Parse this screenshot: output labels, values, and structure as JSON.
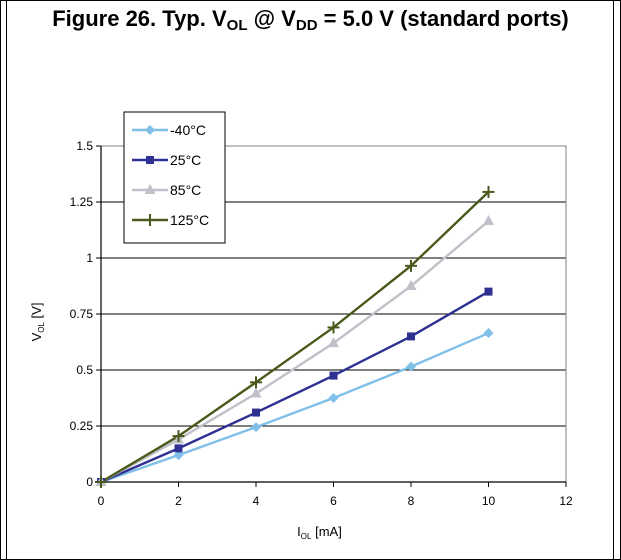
{
  "figure": {
    "title_prefix": "Figure 26. Typ. V",
    "title_sub1": "OL",
    "title_mid": " @ V",
    "title_sub2": "DD",
    "title_suffix": " = 5.0 V (standard ports)"
  },
  "chart_data": {
    "type": "line",
    "xlabel_main": "I",
    "xlabel_sub": "OL",
    "xlabel_unit": " [mA]",
    "ylabel_main": "V",
    "ylabel_sub": "OL",
    "ylabel_unit": " [V]",
    "xlim": [
      0,
      12
    ],
    "ylim": [
      0,
      1.5
    ],
    "xticks": [
      "0",
      "2",
      "4",
      "6",
      "8",
      "10",
      "12"
    ],
    "yticks": [
      "0",
      "0.25",
      "0.5",
      "0.75",
      "1",
      "1.25",
      "1.5"
    ],
    "grid": "horizontal",
    "legend_position": "top-left",
    "x": [
      0,
      2,
      4,
      6,
      8,
      10
    ],
    "series": [
      {
        "name": "-40°C",
        "color": "#7fbfe8",
        "marker": "diamond",
        "values": [
          0,
          0.12,
          0.245,
          0.375,
          0.515,
          0.665
        ]
      },
      {
        "name": "25°C",
        "color": "#2e3192",
        "marker": "square",
        "values": [
          0,
          0.15,
          0.31,
          0.475,
          0.65,
          0.85
        ]
      },
      {
        "name": "85°C",
        "color": "#c0c0c8",
        "marker": "triangle",
        "values": [
          0,
          0.19,
          0.395,
          0.62,
          0.875,
          1.165
        ]
      },
      {
        "name": "125°C",
        "color": "#4a5a1c",
        "marker": "plus",
        "values": [
          0,
          0.205,
          0.445,
          0.69,
          0.965,
          1.295
        ]
      }
    ]
  }
}
